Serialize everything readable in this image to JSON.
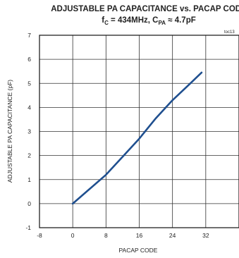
{
  "chart_data": {
    "type": "line",
    "title": "ADJUSTABLE PA CAPACITANCE vs. PACAP CODE",
    "subtitle": {
      "prefix": "f",
      "prefix_sub": "C",
      "middle": " = 434MHz, C",
      "middle_sub": "PA",
      "suffix": " ≈ 4.7pF"
    },
    "chart_code": "toc13",
    "xlabel": "PACAP CODE",
    "ylabel": "ADJUSTABLE PA CAPACITANCE (pF)",
    "xlim": [
      -8,
      40
    ],
    "ylim": [
      -1,
      7
    ],
    "xticks": [
      -8,
      0,
      8,
      16,
      24,
      32
    ],
    "yticks": [
      -1,
      0,
      1,
      2,
      3,
      4,
      5,
      6,
      7
    ],
    "grid": true,
    "series": [
      {
        "x": [
          0,
          4,
          8,
          12,
          16,
          20,
          24,
          28,
          31
        ],
        "y": [
          0.0,
          0.6,
          1.2,
          1.95,
          2.7,
          3.55,
          4.3,
          4.95,
          5.45
        ],
        "color": "#1f4f8f"
      }
    ]
  }
}
